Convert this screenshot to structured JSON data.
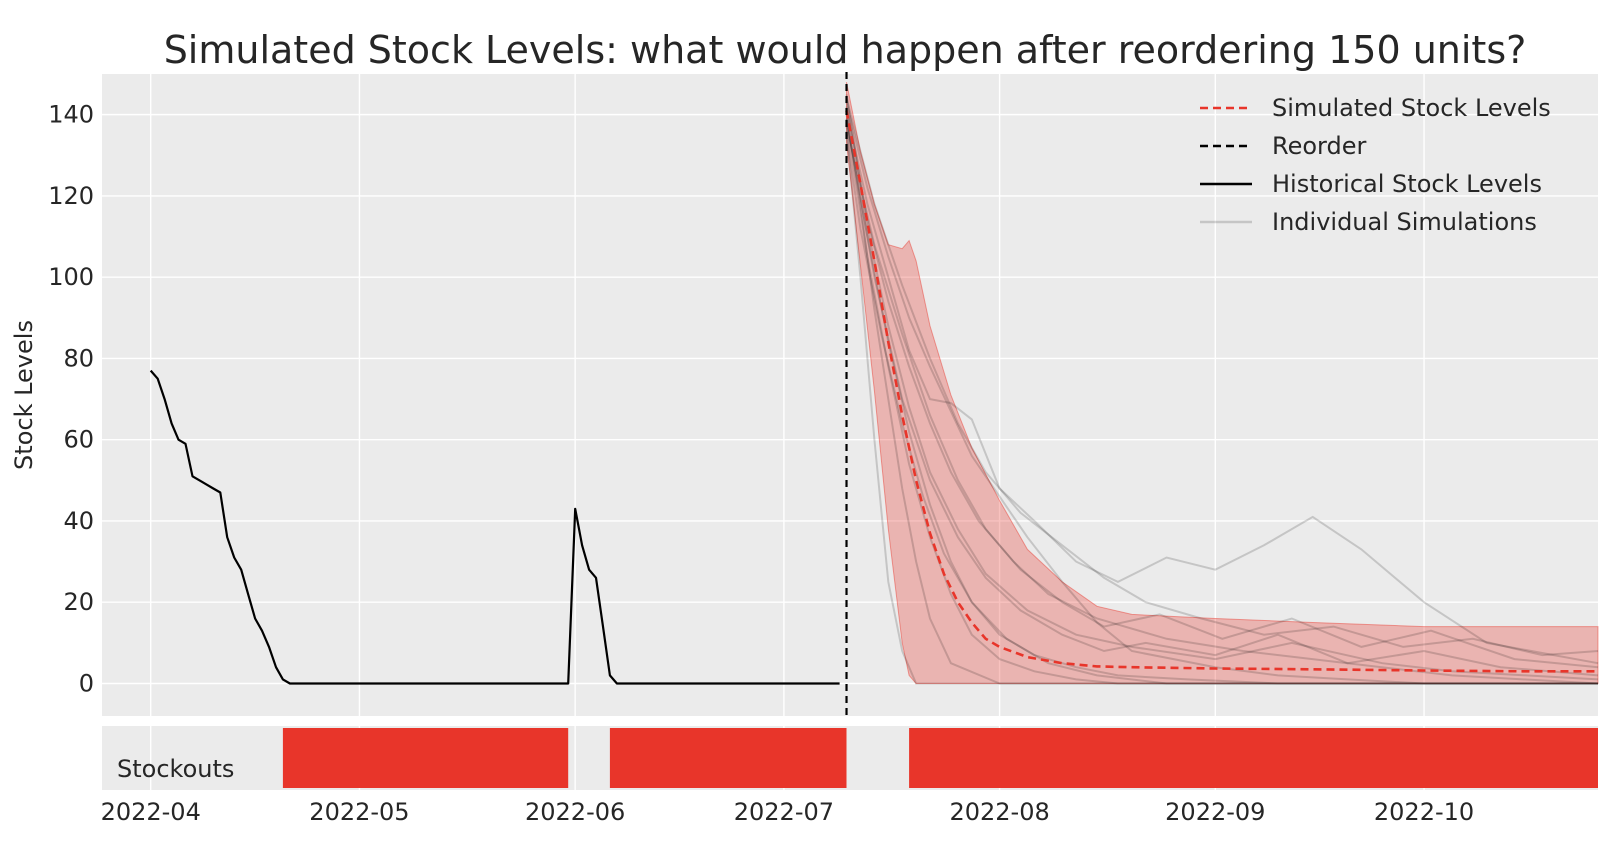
{
  "chart_data": {
    "type": "line",
    "title": "Simulated Stock Levels: what would happen after reordering 150 units?",
    "xlabel": "",
    "ylabel": "Stock Levels",
    "ylim": [
      -8,
      150
    ],
    "x_range": [
      "2022-03-25",
      "2022-10-26"
    ],
    "x_ticks": [
      "2022-04",
      "2022-05",
      "2022-06",
      "2022-07",
      "2022-08",
      "2022-09",
      "2022-10"
    ],
    "y_ticks": [
      0,
      20,
      40,
      60,
      80,
      100,
      120,
      140
    ],
    "grid": true,
    "legend_position": "top-right",
    "legend": [
      "Simulated Stock Levels",
      "Reorder",
      "Historical Stock Levels",
      "Individual Simulations"
    ],
    "reorder_date": "2022-07-10",
    "historical": {
      "x": [
        "2022-04-01",
        "2022-04-02",
        "2022-04-03",
        "2022-04-04",
        "2022-04-05",
        "2022-04-06",
        "2022-04-07",
        "2022-04-08",
        "2022-04-09",
        "2022-04-10",
        "2022-04-11",
        "2022-04-12",
        "2022-04-13",
        "2022-04-14",
        "2022-04-15",
        "2022-04-16",
        "2022-04-17",
        "2022-04-18",
        "2022-04-19",
        "2022-04-20",
        "2022-04-21",
        "2022-04-22",
        "2022-04-23",
        "2022-05-31",
        "2022-06-01",
        "2022-06-02",
        "2022-06-03",
        "2022-06-04",
        "2022-06-05",
        "2022-06-06",
        "2022-06-07",
        "2022-07-09"
      ],
      "y": [
        77,
        75,
        70,
        64,
        60,
        59,
        51,
        50,
        49,
        48,
        47,
        36,
        31,
        28,
        22,
        16,
        13,
        9,
        4,
        1,
        0,
        0,
        0,
        0,
        43,
        34,
        28,
        26,
        14,
        2,
        0,
        0
      ]
    },
    "simulated_mean": {
      "x": [
        "2022-07-10",
        "2022-07-12",
        "2022-07-14",
        "2022-07-16",
        "2022-07-18",
        "2022-07-20",
        "2022-07-22",
        "2022-07-24",
        "2022-07-26",
        "2022-07-28",
        "2022-07-30",
        "2022-08-01",
        "2022-08-05",
        "2022-08-10",
        "2022-08-15",
        "2022-08-20",
        "2022-09-01",
        "2022-09-15",
        "2022-10-01",
        "2022-10-15",
        "2022-10-26"
      ],
      "y": [
        141,
        123,
        104,
        84,
        66,
        50,
        37,
        27,
        20,
        15,
        11,
        9,
        6.5,
        5,
        4.2,
        4,
        3.7,
        3.5,
        3.2,
        3,
        3
      ]
    },
    "simulated_band": {
      "x": [
        "2022-07-10",
        "2022-07-12",
        "2022-07-14",
        "2022-07-16",
        "2022-07-18",
        "2022-07-19",
        "2022-07-20",
        "2022-07-22",
        "2022-07-25",
        "2022-07-28",
        "2022-08-01",
        "2022-08-05",
        "2022-08-10",
        "2022-08-15",
        "2022-08-20",
        "2022-09-01",
        "2022-09-15",
        "2022-10-01",
        "2022-10-15",
        "2022-10-26"
      ],
      "upper": [
        148,
        131,
        118,
        108,
        107,
        109,
        104,
        88,
        71,
        58,
        45,
        33,
        25,
        19,
        17,
        16,
        15,
        14,
        14,
        14
      ],
      "lower": [
        133,
        103,
        72,
        38,
        10,
        2,
        0,
        0,
        0,
        0,
        0,
        0,
        0,
        0,
        0,
        0,
        0,
        0,
        0,
        0
      ]
    },
    "individual_simulations": [
      {
        "x": [
          "2022-07-10",
          "2022-07-13",
          "2022-07-16",
          "2022-07-19",
          "2022-07-22",
          "2022-07-25",
          "2022-07-28",
          "2022-08-01",
          "2022-08-06",
          "2022-08-12",
          "2022-08-18",
          "2022-08-25",
          "2022-09-01",
          "2022-09-08",
          "2022-09-15",
          "2022-09-22",
          "2022-10-01",
          "2022-10-10",
          "2022-10-26"
        ],
        "y": [
          138,
          105,
          78,
          54,
          36,
          22,
          12,
          6,
          3,
          1,
          0,
          0,
          0,
          0,
          0,
          0,
          0,
          0,
          0
        ]
      },
      {
        "x": [
          "2022-07-10",
          "2022-07-13",
          "2022-07-16",
          "2022-07-19",
          "2022-07-22",
          "2022-07-25",
          "2022-07-28",
          "2022-08-01",
          "2022-08-06",
          "2022-08-12",
          "2022-08-18",
          "2022-08-25",
          "2022-09-01",
          "2022-09-08",
          "2022-09-15",
          "2022-09-22",
          "2022-10-01",
          "2022-10-10",
          "2022-10-26"
        ],
        "y": [
          141,
          118,
          100,
          82,
          70,
          69,
          65,
          48,
          40,
          30,
          25,
          31,
          28,
          34,
          41,
          33,
          20,
          10,
          5
        ]
      },
      {
        "x": [
          "2022-07-10",
          "2022-07-12",
          "2022-07-14",
          "2022-07-16",
          "2022-07-18",
          "2022-07-20",
          "2022-07-24",
          "2022-08-01",
          "2022-08-15",
          "2022-09-01",
          "2022-09-15",
          "2022-10-01",
          "2022-10-26"
        ],
        "y": [
          136,
          100,
          60,
          25,
          8,
          0,
          0,
          0,
          0,
          0,
          0,
          0,
          0
        ]
      },
      {
        "x": [
          "2022-07-10",
          "2022-07-13",
          "2022-07-16",
          "2022-07-19",
          "2022-07-22",
          "2022-07-25",
          "2022-07-28",
          "2022-08-01",
          "2022-08-05",
          "2022-08-10",
          "2022-08-15",
          "2022-08-20",
          "2022-09-01",
          "2022-09-10",
          "2022-09-20",
          "2022-10-01",
          "2022-10-10",
          "2022-10-26"
        ],
        "y": [
          143,
          122,
          105,
          90,
          78,
          67,
          56,
          46,
          36,
          25,
          15,
          8,
          4,
          2,
          1,
          0,
          0,
          0
        ]
      },
      {
        "x": [
          "2022-07-10",
          "2022-07-14",
          "2022-07-18",
          "2022-07-22",
          "2022-07-26",
          "2022-07-30",
          "2022-08-04",
          "2022-08-10",
          "2022-08-16",
          "2022-08-22",
          "2022-09-01",
          "2022-09-10",
          "2022-09-20",
          "2022-10-01",
          "2022-10-12",
          "2022-10-26"
        ],
        "y": [
          139,
          100,
          70,
          50,
          36,
          26,
          18,
          12,
          8,
          10,
          7,
          12,
          5,
          8,
          4,
          2
        ]
      },
      {
        "x": [
          "2022-07-10",
          "2022-07-13",
          "2022-07-16",
          "2022-07-19",
          "2022-07-22",
          "2022-07-26",
          "2022-07-30",
          "2022-08-05",
          "2022-08-12",
          "2022-08-20",
          "2022-09-01",
          "2022-09-12",
          "2022-09-25",
          "2022-10-05",
          "2022-10-26"
        ],
        "y": [
          145,
          112,
          88,
          68,
          52,
          38,
          27,
          18,
          12,
          9,
          6,
          10,
          5,
          3,
          1
        ]
      },
      {
        "x": [
          "2022-07-10",
          "2022-07-12",
          "2022-07-14",
          "2022-07-16",
          "2022-07-18",
          "2022-07-20",
          "2022-07-22",
          "2022-07-25",
          "2022-08-01",
          "2022-08-15",
          "2022-09-01",
          "2022-10-26"
        ],
        "y": [
          140,
          118,
          92,
          70,
          48,
          30,
          16,
          5,
          0,
          0,
          0,
          0
        ]
      },
      {
        "x": [
          "2022-07-10",
          "2022-07-14",
          "2022-07-18",
          "2022-07-22",
          "2022-07-26",
          "2022-07-30",
          "2022-08-04",
          "2022-08-10",
          "2022-08-16",
          "2022-08-24",
          "2022-09-02",
          "2022-09-12",
          "2022-09-22",
          "2022-10-02",
          "2022-10-14",
          "2022-10-26"
        ],
        "y": [
          137,
          108,
          86,
          66,
          50,
          38,
          28,
          20,
          14,
          17,
          11,
          16,
          9,
          13,
          6,
          4
        ]
      },
      {
        "x": [
          "2022-07-10",
          "2022-07-13",
          "2022-07-16",
          "2022-07-19",
          "2022-07-22",
          "2022-07-25",
          "2022-07-29",
          "2022-08-03",
          "2022-08-08",
          "2022-08-15",
          "2022-08-25",
          "2022-09-05",
          "2022-09-20",
          "2022-10-05",
          "2022-10-26"
        ],
        "y": [
          142,
          114,
          94,
          78,
          64,
          52,
          40,
          30,
          22,
          16,
          11,
          8,
          5,
          2,
          0
        ]
      },
      {
        "x": [
          "2022-07-10",
          "2022-07-13",
          "2022-07-16",
          "2022-07-19",
          "2022-07-22",
          "2022-07-25",
          "2022-07-28",
          "2022-08-01",
          "2022-08-06",
          "2022-08-12",
          "2022-08-18",
          "2022-08-28",
          "2022-09-10",
          "2022-09-25",
          "2022-10-26"
        ],
        "y": [
          139,
          110,
          84,
          62,
          44,
          30,
          20,
          12,
          7,
          4,
          2,
          1,
          0,
          0,
          0
        ]
      },
      {
        "x": [
          "2022-07-10",
          "2022-07-14",
          "2022-07-18",
          "2022-07-22",
          "2022-07-26",
          "2022-07-30",
          "2022-08-04",
          "2022-08-10",
          "2022-08-16",
          "2022-08-22",
          "2022-08-30",
          "2022-09-08",
          "2022-09-18",
          "2022-09-28",
          "2022-10-08",
          "2022-10-18",
          "2022-10-26"
        ],
        "y": [
          144,
          118,
          98,
          80,
          64,
          52,
          42,
          34,
          26,
          20,
          16,
          12,
          14,
          9,
          11,
          7,
          8
        ]
      },
      {
        "x": [
          "2022-07-10",
          "2022-07-12",
          "2022-07-15",
          "2022-07-18",
          "2022-07-21",
          "2022-07-24",
          "2022-07-28",
          "2022-08-02",
          "2022-08-08",
          "2022-08-15",
          "2022-08-25",
          "2022-09-05",
          "2022-10-26"
        ],
        "y": [
          135,
          112,
          86,
          64,
          46,
          32,
          20,
          11,
          5,
          2,
          0,
          0,
          0
        ]
      }
    ]
  },
  "stockouts": {
    "label": "Stockouts",
    "color": "#e8352a",
    "periods": [
      [
        "2022-04-20",
        "2022-05-31"
      ],
      [
        "2022-06-06",
        "2022-07-10"
      ],
      [
        "2022-07-19",
        "2022-10-26"
      ]
    ]
  },
  "colors": {
    "plot_background": "#ebebeb",
    "grid": "#ffffff",
    "historical": "#000000",
    "simulated_mean": "#e8352a",
    "band_fill": "#e8352a",
    "individual": "#000000",
    "reorder": "#000000",
    "text": "#262626"
  }
}
